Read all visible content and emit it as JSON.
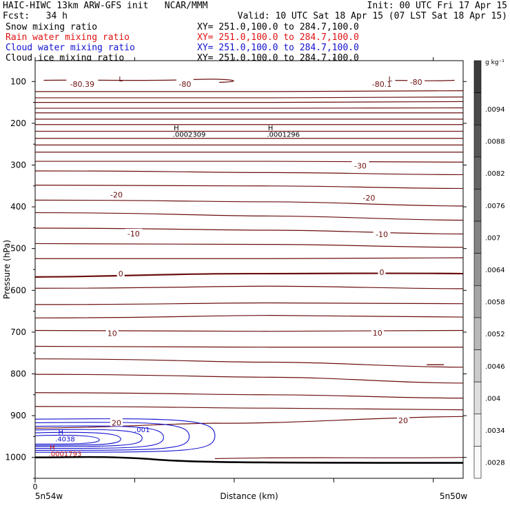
{
  "header": {
    "title_left": "HAIC-HIWC 13km ARW-GFS init   NCAR/MMM",
    "fcst": "Fcst:   34 h",
    "init": "Init: 00 UTC Fri 17 Apr 15",
    "valid": "Valid: 10 UTC Sat 18 Apr 15 (07 LST Sat 18 Apr 15)",
    "fields": [
      {
        "name": "Snow mixing ratio",
        "xy": "XY= 251.0,100.0 to 284.7,100.0",
        "color": "#000000"
      },
      {
        "name": "Rain water mixing ratio",
        "xy": "XY= 251.0,100.0 to 284.7,100.0",
        "color": "#e01010"
      },
      {
        "name": "Cloud water mixing ratio",
        "xy": "XY= 251.0,100.0 to 284.7,100.0",
        "color": "#1010d0"
      },
      {
        "name": "Cloud ice mixing ratio",
        "xy": "XY= 251.0,100.0 to 284.7,100.0",
        "color": "#000000"
      }
    ]
  },
  "chart_data": {
    "type": "contour",
    "xlabel": "Distance (km)",
    "ylabel": "Pressure (hPa)",
    "x_start_label": "0",
    "x_left_label": "5n54w",
    "x_right_label": "5n50w",
    "yticks": [
      100,
      200,
      300,
      400,
      500,
      600,
      700,
      800,
      900,
      1000
    ],
    "ylim": [
      1050,
      50
    ],
    "colorbar": {
      "unit": "g kg⁻¹",
      "labels": [
        ".0094",
        ".0088",
        ".0082",
        ".0076",
        ".007",
        ".0064",
        ".0058",
        ".0052",
        ".0046",
        ".004",
        ".0034",
        ".0028"
      ],
      "colors": [
        "#3c3c3c",
        "#4a4a4a",
        "#575757",
        "#656565",
        "#737373",
        "#828282",
        "#939393",
        "#a5a5a5",
        "#b8b8b8",
        "#cbcbcb",
        "#dedede",
        "#eeeeee",
        "#fafafa"
      ]
    },
    "isotherm_labels": [
      {
        "text": "-80.39",
        "pressure": 106,
        "x_frac": 0.11
      },
      {
        "text": "-80",
        "pressure": 106,
        "x_frac": 0.35
      },
      {
        "text": "-80.1",
        "pressure": 106,
        "x_frac": 0.81
      },
      {
        "text": "-80",
        "pressure": 101,
        "x_frac": 0.89
      },
      {
        "text": "-30",
        "pressure": 302,
        "x_frac": 0.76
      },
      {
        "text": "-20",
        "pressure": 371,
        "x_frac": 0.19
      },
      {
        "text": "-20",
        "pressure": 378,
        "x_frac": 0.78
      },
      {
        "text": "-10",
        "pressure": 464,
        "x_frac": 0.23
      },
      {
        "text": "-10",
        "pressure": 466,
        "x_frac": 0.81
      },
      {
        "text": "0",
        "pressure": 560,
        "x_frac": 0.2
      },
      {
        "text": "0",
        "pressure": 557,
        "x_frac": 0.81
      },
      {
        "text": "10",
        "pressure": 703,
        "x_frac": 0.18
      },
      {
        "text": "10",
        "pressure": 702,
        "x_frac": 0.8
      },
      {
        "text": "20",
        "pressure": 917,
        "x_frac": 0.19
      },
      {
        "text": "20",
        "pressure": 911,
        "x_frac": 0.86
      }
    ],
    "extrema": [
      {
        "text": "L",
        "pressure": 93,
        "x_frac": 0.2,
        "color": "#5a0000"
      },
      {
        "text": "L",
        "pressure": 93,
        "x_frac": 0.83,
        "color": "#5a0000"
      },
      {
        "text": "H",
        "pressure": 210,
        "x_frac": 0.33,
        "color": "#000000"
      },
      {
        "text": ".0002309",
        "pressure": 226,
        "x_frac": 0.36,
        "color": "#000000"
      },
      {
        "text": "H",
        "pressure": 210,
        "x_frac": 0.55,
        "color": "#000000"
      },
      {
        "text": ".0001296",
        "pressure": 226,
        "x_frac": 0.58,
        "color": "#000000"
      },
      {
        "text": "H",
        "pressure": 939,
        "x_frac": 0.06,
        "color": "#1010d0"
      },
      {
        "text": ".4038",
        "pressure": 955,
        "x_frac": 0.07,
        "color": "#1010d0"
      },
      {
        "text": ".001",
        "pressure": 933,
        "x_frac": 0.25,
        "color": "#1010d0"
      },
      {
        "text": "H",
        "pressure": 975,
        "x_frac": 0.04,
        "color": "#c01010"
      },
      {
        "text": ".0001793",
        "pressure": 991,
        "x_frac": 0.07,
        "color": "#c01010"
      }
    ]
  }
}
